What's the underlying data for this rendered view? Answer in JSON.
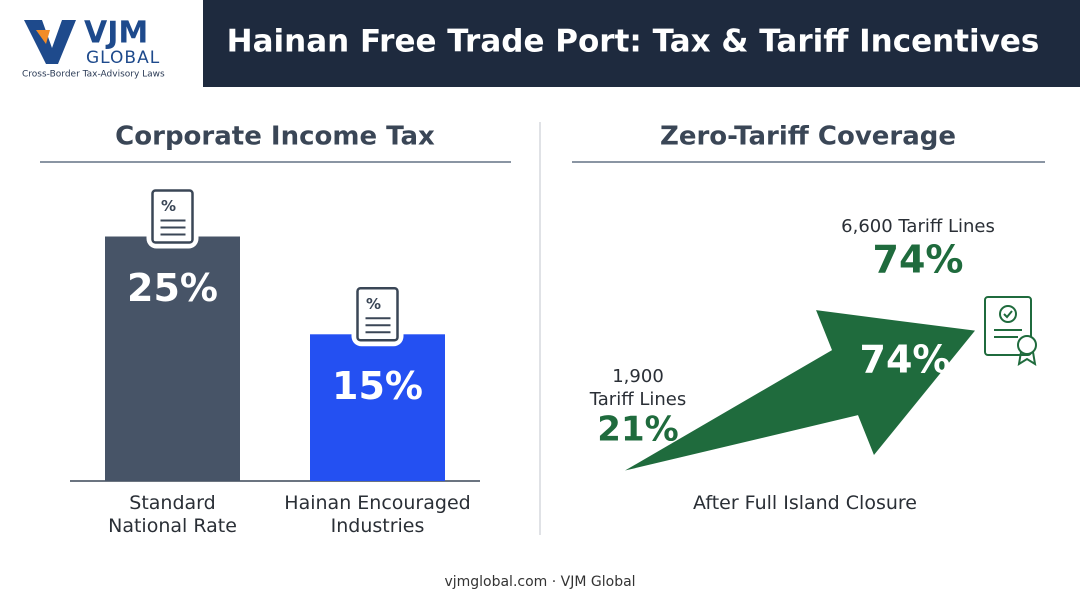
{
  "header": {
    "logo_name": "VJM",
    "logo_sub": "GLOBAL",
    "logo_tagline": "Cross-Border Tax-Advisory Laws",
    "title": "Hainan Free Trade Port: Tax & Tariff Incentives"
  },
  "chart_data": [
    {
      "type": "bar",
      "title": "Corporate Income Tax",
      "categories": [
        "Standard National Rate",
        "Hainan Encouraged Industries"
      ],
      "values": [
        25,
        15
      ],
      "value_labels": [
        "25%",
        "15%"
      ],
      "colors": [
        "#475467",
        "#2450f2"
      ]
    },
    {
      "type": "arrow",
      "title": "Zero-Tariff Coverage",
      "xlabel": "After Full Island Closure",
      "categories": [
        "1,900\nTariff Lines",
        "6,600 Tariff Lines"
      ],
      "values": [
        21,
        74
      ],
      "value_labels": [
        "21%",
        "74%"
      ],
      "color": "#1f6b3d"
    }
  ],
  "footer": "vjmglobal.com · VJM Global"
}
